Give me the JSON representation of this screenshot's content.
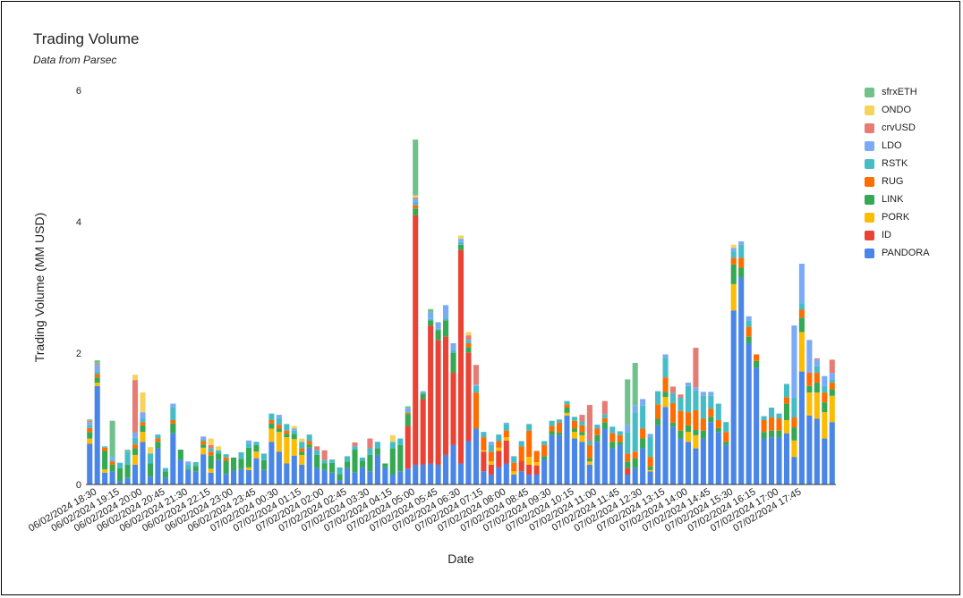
{
  "title": "Trading Volume",
  "subtitle": "Data from Parsec",
  "chart_data": {
    "type": "bar",
    "stacked": true,
    "title": "Trading Volume",
    "subtitle": "Data from Parsec",
    "xlabel": "Date",
    "ylabel": "Trading Volume (MM USD)",
    "ylim": [
      0,
      6
    ],
    "yticks": [
      0,
      2,
      4,
      6
    ],
    "grid": false,
    "legend_position": "right",
    "x_tick_labels": [
      "06/02/2024 18:30",
      "06/02/2024 19:15",
      "06/02/2024 20:00",
      "06/02/2024 20:45",
      "06/02/2024 21:30",
      "06/02/2024 22:15",
      "06/02/2024 23:00",
      "06/02/2024 23:45",
      "07/02/2024 00:30",
      "07/02/2024 01:15",
      "07/02/2024 02:00",
      "07/02/2024 02:45",
      "07/02/2024 03:30",
      "07/02/2024 04:15",
      "07/02/2024 05:00",
      "07/02/2024 05:45",
      "07/02/2024 06:30",
      "07/02/2024 07:15",
      "07/02/2024 08:00",
      "07/02/2024 08:45",
      "07/02/2024 09:30",
      "07/02/2024 10:15",
      "07/02/2024 11:00",
      "07/02/2024 11:45",
      "07/02/2024 12:30",
      "07/02/2024 13:15",
      "07/02/2024 14:00",
      "07/02/2024 14:45",
      "07/02/2024 15:30",
      "07/02/2024 16:15",
      "07/02/2024 17:00",
      "07/02/2024 17:45"
    ],
    "series": [
      {
        "name": "PANDORA",
        "color": "#4a86e8",
        "values": [
          0.62,
          1.5,
          0.18,
          0.2,
          0.05,
          0.1,
          0.3,
          0.65,
          0.12,
          0.55,
          0.1,
          0.78,
          0.38,
          0.22,
          0.2,
          0.46,
          0.18,
          0.37,
          0.16,
          0.21,
          0.24,
          0.22,
          0.4,
          0.22,
          0.65,
          0.5,
          0.32,
          0.44,
          0.3,
          0.56,
          0.25,
          0.22,
          0.18,
          0.06,
          0.25,
          0.18,
          0.26,
          0.2,
          0.45,
          0.26,
          0.15,
          0.2,
          0.24,
          0.3,
          0.3,
          0.32,
          0.3,
          0.45,
          0.6,
          0.32,
          0.66,
          0.85,
          0.2,
          0.15,
          0.26,
          0.32,
          0.15,
          0.2,
          0.15,
          0.15,
          0.38,
          0.75,
          0.75,
          1.05,
          0.7,
          0.65,
          0.3,
          0.65,
          0.85,
          0.55,
          0.6,
          0.15,
          0.25,
          0.55,
          0.2,
          0.9,
          1.18,
          0.88,
          0.7,
          0.65,
          0.55,
          0.7,
          0.95,
          0.8,
          0.6,
          2.65,
          3.15,
          2.15,
          1.78,
          0.7,
          0.72,
          0.72,
          0.78,
          0.42,
          1.72,
          1.05,
          1.0,
          0.7,
          0.95
        ]
      },
      {
        "name": "ID",
        "color": "#ea4335",
        "values": [
          0,
          0,
          0,
          0,
          0,
          0,
          0,
          0,
          0,
          0,
          0,
          0,
          0,
          0,
          0,
          0,
          0,
          0,
          0,
          0,
          0,
          0,
          0,
          0,
          0,
          0,
          0,
          0,
          0,
          0,
          0,
          0,
          0,
          0,
          0,
          0,
          0,
          0,
          0,
          0,
          0,
          0,
          0.65,
          3.8,
          1.0,
          2.1,
          1.9,
          1.8,
          1.1,
          3.25,
          1.35,
          0,
          0.3,
          0.15,
          0.25,
          0.35,
          0,
          0.16,
          0.15,
          0.14,
          0,
          0,
          0,
          0,
          0,
          0,
          0,
          0,
          0,
          0,
          0,
          0.1,
          0,
          0,
          0,
          0,
          0,
          0,
          0,
          0,
          0,
          0,
          0,
          0,
          0,
          0,
          0,
          0,
          0,
          0,
          0,
          0,
          0,
          0,
          0,
          0,
          0,
          0,
          0
        ]
      },
      {
        "name": "PORK",
        "color": "#fbbc04",
        "values": [
          0.08,
          0.05,
          0.05,
          0,
          0,
          0,
          0.15,
          0.15,
          0,
          0,
          0,
          0,
          0,
          0,
          0,
          0.1,
          0.06,
          0,
          0,
          0,
          0,
          0.04,
          0.1,
          0,
          0.2,
          0.3,
          0.4,
          0.25,
          0.15,
          0,
          0,
          0,
          0,
          0,
          0,
          0,
          0,
          0,
          0,
          0,
          0,
          0,
          0,
          0,
          0,
          0,
          0,
          0,
          0,
          0,
          0,
          0,
          0.02,
          0.05,
          0.05,
          0.05,
          0.05,
          0,
          0.12,
          0.05,
          0,
          0,
          0,
          0.04,
          0.1,
          0.1,
          0.05,
          0,
          0,
          0,
          0,
          0,
          0,
          0,
          0.02,
          0,
          0.15,
          0,
          0,
          0.15,
          0.2,
          0,
          0,
          0,
          0,
          0.4,
          0,
          0,
          0,
          0,
          0,
          0,
          0.2,
          0.25,
          0.6,
          0.35,
          0.4,
          0.4,
          0.4
        ]
      },
      {
        "name": "LINK",
        "color": "#34a853",
        "values": [
          0.1,
          0.08,
          0.28,
          0.1,
          0.2,
          0.2,
          0.1,
          0.1,
          0.2,
          0.1,
          0.1,
          0.15,
          0.15,
          0.02,
          0.08,
          0.05,
          0.2,
          0.1,
          0.2,
          0.2,
          0.15,
          0.3,
          0.1,
          0.15,
          0.08,
          0.05,
          0.05,
          0.08,
          0.05,
          0.05,
          0.2,
          0.1,
          0.15,
          0.1,
          0.1,
          0.35,
          0.1,
          0.25,
          0.1,
          0.06,
          0.4,
          0.4,
          0.18,
          0.1,
          0.08,
          0.08,
          0.15,
          0.25,
          0.3,
          0.08,
          0.08,
          0,
          0,
          0,
          0,
          0,
          0,
          0,
          0,
          0,
          0.05,
          0.06,
          0.04,
          0.08,
          0.05,
          0.05,
          0.05,
          0.1,
          0.1,
          0.1,
          0.05,
          0.1,
          0.15,
          0.15,
          0.05,
          0.1,
          0.08,
          0.06,
          0.12,
          0.1,
          0.08,
          0.12,
          0.08,
          0.06,
          0.05,
          0.3,
          0.15,
          0.1,
          0.1,
          0.1,
          0.1,
          0.1,
          0.25,
          0.2,
          0.22,
          0.1,
          0.15,
          0.15,
          0.1
        ]
      },
      {
        "name": "RUG",
        "color": "#ff6d01",
        "values": [
          0.06,
          0.05,
          0.05,
          0.05,
          0,
          0,
          0.06,
          0.05,
          0,
          0.05,
          0,
          0.05,
          0,
          0,
          0,
          0.05,
          0.06,
          0,
          0.05,
          0,
          0,
          0,
          0,
          0,
          0.05,
          0.06,
          0.05,
          0,
          0.05,
          0.05,
          0,
          0,
          0,
          0,
          0,
          0,
          0,
          0,
          0,
          0,
          0,
          0,
          0.02,
          0.05,
          0,
          0,
          0,
          0,
          0,
          0,
          0.06,
          0.55,
          0.2,
          0.15,
          0.1,
          0.1,
          0.13,
          0.22,
          0.4,
          0.17,
          0.17,
          0.08,
          0.15,
          0.05,
          0.12,
          0.1,
          0.2,
          0.1,
          0.06,
          0.13,
          0.1,
          0.12,
          0.1,
          0.15,
          0.15,
          0.22,
          0.22,
          0.3,
          0.3,
          0.2,
          0.3,
          0.18,
          0.12,
          0.12,
          0.15,
          0.1,
          0.15,
          0.15,
          0.1,
          0.18,
          0.2,
          0.18,
          0.1,
          0.15,
          0.12,
          0.2,
          0.15,
          0.15,
          0.1
        ]
      },
      {
        "name": "RSTK",
        "color": "#46bdc6",
        "values": [
          0.04,
          0.04,
          0.02,
          0.02,
          0.08,
          0.2,
          0.1,
          0.05,
          0.15,
          0.06,
          0.05,
          0.2,
          0,
          0.06,
          0.06,
          0.02,
          0.05,
          0.05,
          0.05,
          0,
          0.1,
          0.06,
          0.05,
          0.1,
          0.1,
          0.1,
          0.1,
          0.05,
          0.1,
          0.1,
          0.07,
          0.05,
          0.05,
          0.1,
          0.08,
          0.05,
          0.05,
          0.1,
          0.1,
          0,
          0.1,
          0.1,
          0.02,
          0.05,
          0.02,
          0.02,
          0.02,
          0.03,
          0.05,
          0.04,
          0.05,
          0.1,
          0.08,
          0.1,
          0.1,
          0.1,
          0.1,
          0.08,
          0.1,
          0,
          0.06,
          0.08,
          0.05,
          0.05,
          0.06,
          0.06,
          0.06,
          0.06,
          0.06,
          0.1,
          0.06,
          0.33,
          0.6,
          0.35,
          0.3,
          0.2,
          0.3,
          0.15,
          0.2,
          0.4,
          0.3,
          0.35,
          0.2,
          0.25,
          0.15,
          0.1,
          0.2,
          0.1,
          0,
          0.06,
          0.15,
          0.08,
          0.2,
          0.3,
          0.1,
          0,
          0.1,
          0.1,
          0.05
        ]
      },
      {
        "name": "LDO",
        "color": "#7baaf7",
        "values": [
          0.05,
          0.1,
          0,
          0.05,
          0,
          0,
          0.08,
          0.1,
          0,
          0,
          0,
          0.05,
          0,
          0.05,
          0,
          0.05,
          0,
          0,
          0,
          0,
          0,
          0.05,
          0,
          0,
          0,
          0.05,
          0,
          0.03,
          0,
          0,
          0,
          0,
          0,
          0,
          0,
          0,
          0,
          0,
          0,
          0,
          0,
          0,
          0.05,
          0.05,
          0.02,
          0.1,
          0.1,
          0.2,
          0.1,
          0.05,
          0,
          0.02,
          0,
          0.05,
          0,
          0.02,
          0,
          0,
          0,
          0,
          0,
          0,
          0,
          0,
          0,
          0,
          0,
          0,
          0,
          0,
          0,
          0.1,
          0.1,
          0.1,
          0.05,
          0,
          0.05,
          0,
          0,
          0.05,
          0.05,
          0.06,
          0.06,
          0,
          0,
          0.05,
          0.05,
          0.06,
          0,
          0,
          0,
          0,
          0,
          1.1,
          0.6,
          0.5,
          0.1,
          0.15,
          0.1
        ]
      },
      {
        "name": "crvUSD",
        "color": "#e67c73",
        "values": [
          0.02,
          0.02,
          0,
          0,
          0,
          0,
          0.8,
          0,
          0,
          0,
          0,
          0,
          0,
          0,
          0,
          0,
          0.05,
          0,
          0,
          0,
          0,
          0,
          0,
          0,
          0,
          0,
          0,
          0,
          0,
          0,
          0.06,
          0.15,
          0,
          0,
          0,
          0.06,
          0,
          0.15,
          0,
          0,
          0,
          0,
          0,
          0.02,
          0,
          0,
          0,
          0,
          0,
          0,
          0.07,
          0.3,
          0,
          0,
          0,
          0,
          0,
          0,
          0,
          0,
          0,
          0,
          0,
          0,
          0,
          0.1,
          0.55,
          0,
          0.2,
          0,
          0,
          0,
          0,
          0,
          0,
          0,
          0,
          0.1,
          0.05,
          0,
          0.6,
          0,
          0,
          0,
          0,
          0,
          0,
          0,
          0,
          0,
          0,
          0,
          0,
          0,
          0,
          0,
          0.02,
          0,
          0.2
        ]
      },
      {
        "name": "ONDO",
        "color": "#f6d35e",
        "values": [
          0,
          0,
          0,
          0,
          0,
          0,
          0.08,
          0.3,
          0.1,
          0,
          0,
          0,
          0,
          0,
          0,
          0,
          0.1,
          0.06,
          0,
          0,
          0,
          0,
          0,
          0,
          0,
          0,
          0,
          0.04,
          0.05,
          0,
          0,
          0,
          0,
          0,
          0,
          0,
          0,
          0,
          0,
          0,
          0.1,
          0,
          0,
          0.03,
          0,
          0,
          0,
          0,
          0,
          0.05,
          0.05,
          0,
          0,
          0,
          0,
          0,
          0,
          0,
          0,
          0,
          0,
          0,
          0,
          0,
          0,
          0,
          0,
          0,
          0,
          0,
          0,
          0,
          0,
          0,
          0,
          0,
          0,
          0,
          0,
          0,
          0,
          0,
          0,
          0,
          0,
          0.05,
          0,
          0,
          0,
          0,
          0,
          0,
          0,
          0,
          0,
          0,
          0,
          0,
          0
        ]
      },
      {
        "name": "sfrxETH",
        "color": "#6fc28b",
        "values": [
          0.02,
          0.05,
          0,
          0.55,
          0,
          0.03,
          0,
          0,
          0,
          0,
          0,
          0,
          0,
          0,
          0,
          0,
          0,
          0,
          0,
          0,
          0,
          0,
          0,
          0,
          0,
          0,
          0,
          0,
          0,
          0,
          0,
          0,
          0,
          0,
          0,
          0,
          0,
          0,
          0,
          0,
          0,
          0,
          0.03,
          0.85,
          0,
          0.05,
          0,
          0,
          0,
          0,
          0,
          0,
          0,
          0,
          0,
          0,
          0,
          0,
          0,
          0,
          0,
          0,
          0,
          0,
          0,
          0,
          0,
          0,
          0,
          0,
          0,
          0.7,
          0.65,
          0,
          0,
          0,
          0,
          0,
          0,
          0,
          0,
          0,
          0,
          0,
          0,
          0,
          0,
          0,
          0,
          0,
          0,
          0,
          0,
          0,
          0,
          0,
          0,
          0,
          0
        ]
      }
    ]
  }
}
